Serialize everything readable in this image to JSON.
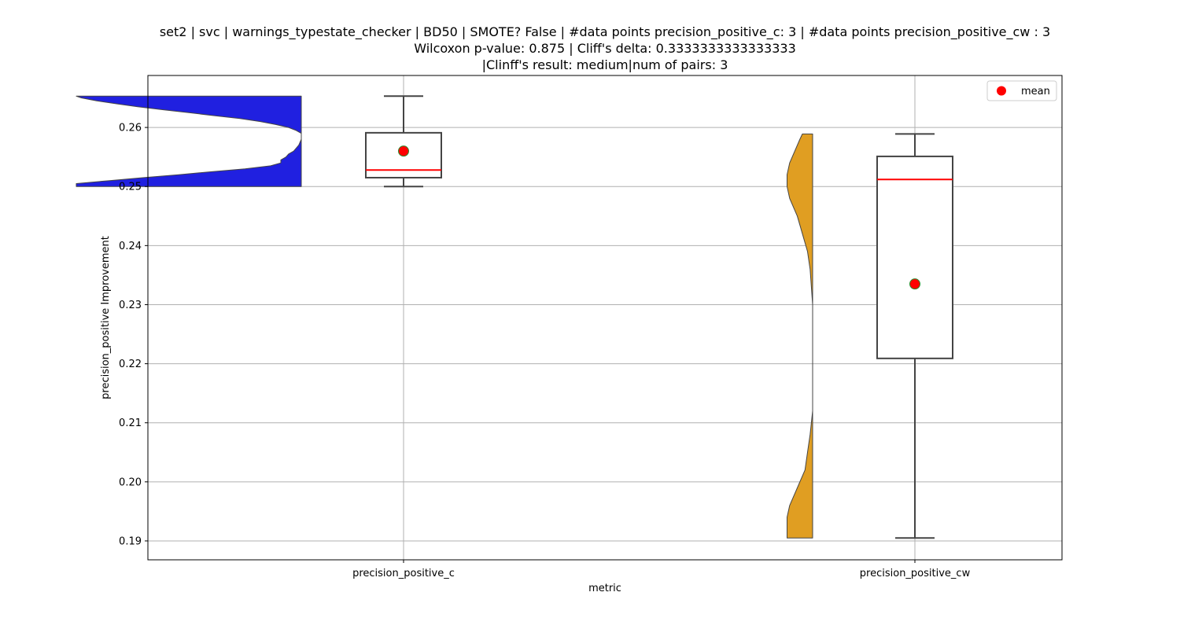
{
  "chart_data": {
    "type": "violin+box",
    "title_lines": [
      "set2 | svc | warnings_typestate_checker | BD50 | SMOTE? False | #data points precision_positive_c: 3 | #data points precision_positive_cw : 3",
      "Wilcoxon p-value: 0.875 | Cliff's delta: 0.3333333333333333",
      "|Clinff's result: medium|num of pairs: 3"
    ],
    "xlabel": "metric",
    "ylabel": "precision_positive Improvement",
    "ylim": [
      0.1868,
      0.2688
    ],
    "yticks": [
      0.19,
      0.2,
      0.21,
      0.22,
      0.23,
      0.24,
      0.25,
      0.26
    ],
    "ytick_labels": [
      "0.19",
      "0.20",
      "0.21",
      "0.22",
      "0.23",
      "0.24",
      "0.25",
      "0.26"
    ],
    "grid": true,
    "legend": {
      "position": "top-right",
      "entries": [
        "mean"
      ]
    },
    "categories": [
      "precision_positive_c",
      "precision_positive_cw"
    ],
    "series": [
      {
        "violin_color": "#2020e0",
        "violin_min": 0.25,
        "violin_max": 0.2653,
        "violin_profile": [
          [
            0.25,
            0.88
          ],
          [
            0.2505,
            0.88
          ],
          [
            0.251,
            0.75
          ],
          [
            0.2515,
            0.62
          ],
          [
            0.252,
            0.48
          ],
          [
            0.2525,
            0.35
          ],
          [
            0.253,
            0.22
          ],
          [
            0.2535,
            0.12
          ],
          [
            0.254,
            0.08
          ],
          [
            0.2545,
            0.08
          ],
          [
            0.255,
            0.06
          ],
          [
            0.2555,
            0.05
          ],
          [
            0.256,
            0.03
          ],
          [
            0.2565,
            0.02
          ],
          [
            0.257,
            0.01
          ],
          [
            0.258,
            0.0
          ],
          [
            0.259,
            0.0
          ],
          [
            0.2595,
            0.02
          ],
          [
            0.26,
            0.05
          ],
          [
            0.2605,
            0.1
          ],
          [
            0.261,
            0.16
          ],
          [
            0.2615,
            0.24
          ],
          [
            0.262,
            0.34
          ],
          [
            0.2625,
            0.44
          ],
          [
            0.263,
            0.54
          ],
          [
            0.2635,
            0.64
          ],
          [
            0.264,
            0.72
          ],
          [
            0.2645,
            0.8
          ],
          [
            0.265,
            0.86
          ],
          [
            0.2653,
            0.88
          ]
        ],
        "whisker_low": 0.25,
        "q1": 0.2515,
        "median": 0.2528,
        "q3": 0.2591,
        "whisker_high": 0.2653,
        "mean": 0.256
      },
      {
        "violin_color": "#e09e22",
        "violin_min": 0.1905,
        "violin_max": 0.2589,
        "violin_profile": [
          [
            0.1905,
            0.1
          ],
          [
            0.192,
            0.1
          ],
          [
            0.194,
            0.1
          ],
          [
            0.196,
            0.09
          ],
          [
            0.198,
            0.07
          ],
          [
            0.2,
            0.05
          ],
          [
            0.202,
            0.03
          ],
          [
            0.205,
            0.02
          ],
          [
            0.208,
            0.01
          ],
          [
            0.212,
            0.0
          ],
          [
            0.22,
            0.0
          ],
          [
            0.23,
            0.0
          ],
          [
            0.236,
            0.01
          ],
          [
            0.239,
            0.02
          ],
          [
            0.242,
            0.04
          ],
          [
            0.245,
            0.06
          ],
          [
            0.248,
            0.09
          ],
          [
            0.25,
            0.1
          ],
          [
            0.252,
            0.1
          ],
          [
            0.254,
            0.09
          ],
          [
            0.256,
            0.07
          ],
          [
            0.258,
            0.05
          ],
          [
            0.2589,
            0.04
          ]
        ],
        "whisker_low": 0.1905,
        "q1": 0.2209,
        "median": 0.2512,
        "q3": 0.2551,
        "whisker_high": 0.2589,
        "mean": 0.2335
      }
    ]
  },
  "colors": {
    "median_line": "#ff0000",
    "mean_marker": "#ff0000",
    "mean_edge": "#2e8b2e",
    "box_edge": "#444444",
    "grid": "#b0b0b0"
  }
}
